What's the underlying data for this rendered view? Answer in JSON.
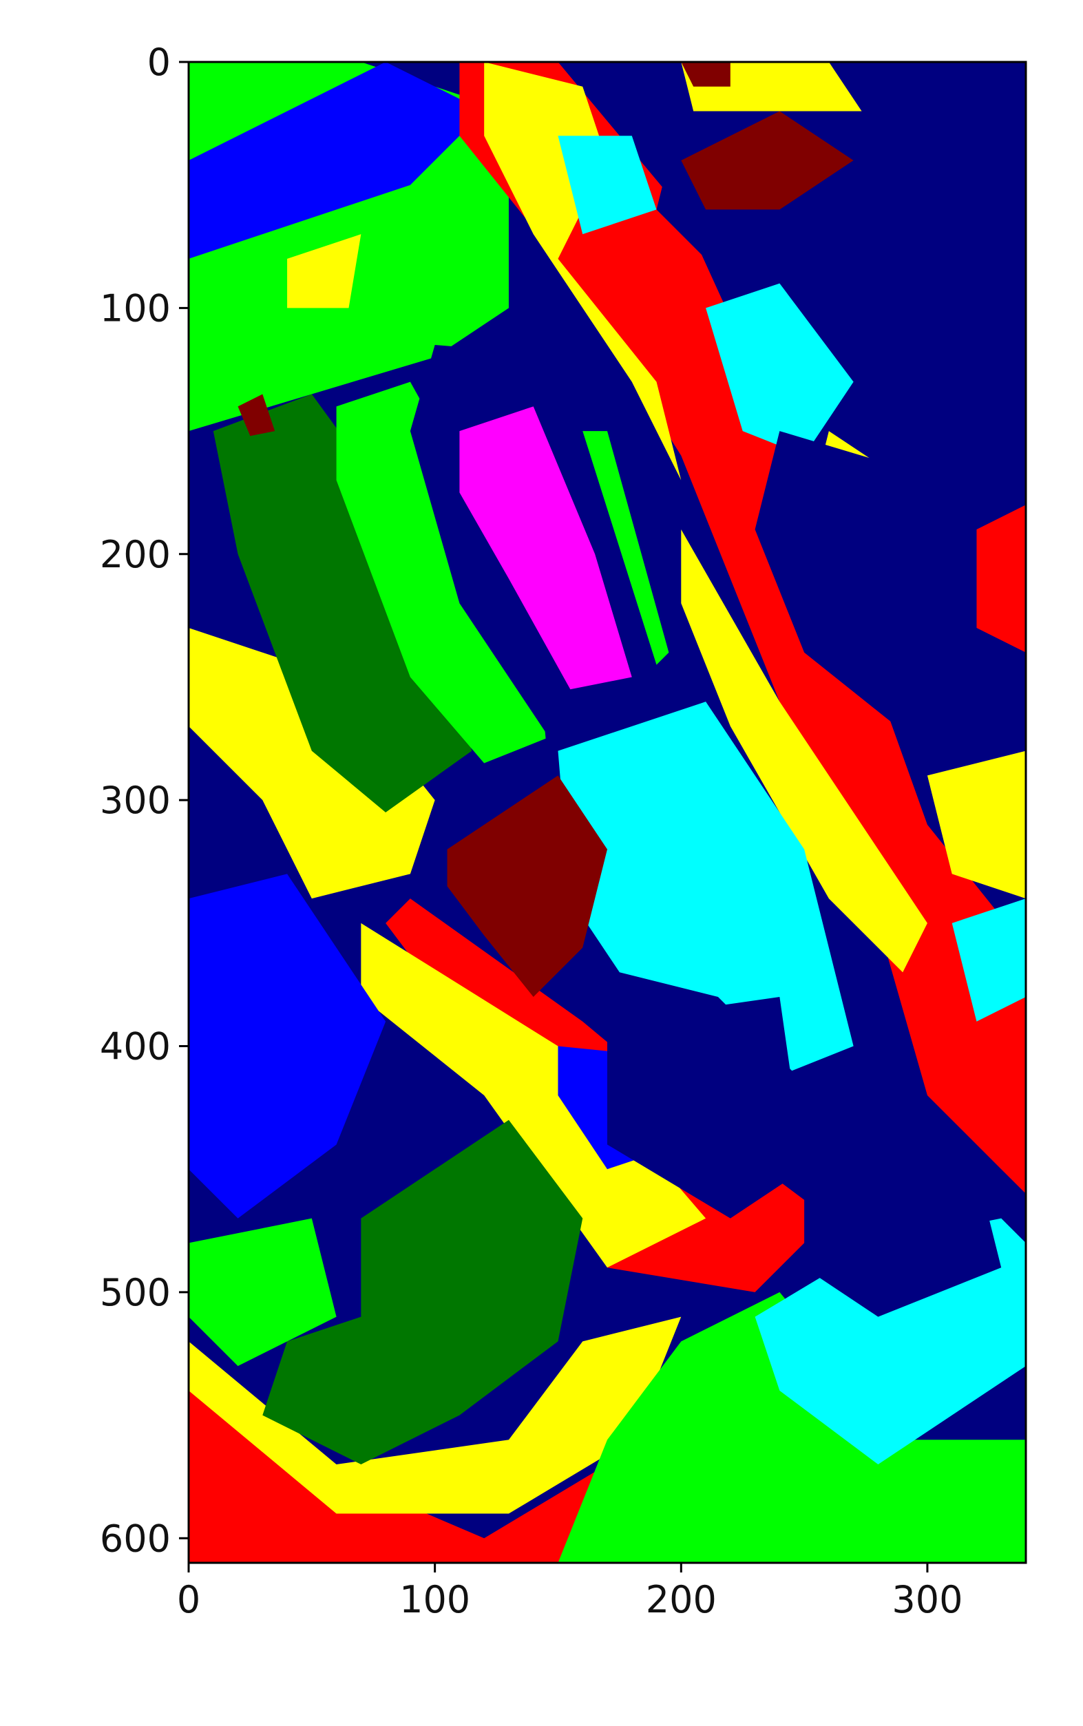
{
  "chart_data": {
    "type": "heatmap",
    "title": "",
    "xlabel": "",
    "ylabel": "",
    "xlim": [
      0,
      340
    ],
    "ylim": [
      610,
      0
    ],
    "x_ticks": [
      0,
      100,
      200,
      300
    ],
    "y_ticks": [
      0,
      100,
      200,
      300,
      400,
      500,
      600
    ],
    "x_tick_labels": [
      "0",
      "100",
      "200",
      "300"
    ],
    "y_tick_labels": [
      "0",
      "100",
      "200",
      "300",
      "400",
      "500",
      "600"
    ],
    "grid": false,
    "legend": "none",
    "palette": {
      "navy": "#000080",
      "blue": "#0000ff",
      "green": "#00ff00",
      "dark_green": "#007700",
      "yellow": "#ffff00",
      "red": "#ff0000",
      "cyan": "#00ffff",
      "magenta": "#ff00ff",
      "maroon": "#800000"
    },
    "regions": [
      {
        "class": "green",
        "points": [
          [
            0,
            0
          ],
          [
            70,
            0
          ],
          [
            130,
            20
          ],
          [
            130,
            100
          ],
          [
            100,
            120
          ],
          [
            0,
            150
          ]
        ]
      },
      {
        "class": "blue",
        "points": [
          [
            0,
            40
          ],
          [
            80,
            0
          ],
          [
            120,
            20
          ],
          [
            90,
            50
          ],
          [
            0,
            80
          ]
        ]
      },
      {
        "class": "yellow",
        "points": [
          [
            40,
            80
          ],
          [
            70,
            70
          ],
          [
            65,
            100
          ],
          [
            40,
            100
          ]
        ]
      },
      {
        "class": "red",
        "points": [
          [
            110,
            0
          ],
          [
            150,
            0
          ],
          [
            200,
            60
          ],
          [
            250,
            170
          ],
          [
            300,
            310
          ],
          [
            340,
            360
          ],
          [
            340,
            460
          ],
          [
            330,
            450
          ],
          [
            300,
            420
          ],
          [
            280,
            350
          ],
          [
            240,
            260
          ],
          [
            200,
            160
          ],
          [
            150,
            80
          ],
          [
            110,
            30
          ]
        ]
      },
      {
        "class": "red",
        "points": [
          [
            90,
            340
          ],
          [
            160,
            390
          ],
          [
            220,
            440
          ],
          [
            260,
            470
          ],
          [
            230,
            500
          ],
          [
            170,
            490
          ],
          [
            110,
            390
          ],
          [
            80,
            350
          ]
        ]
      },
      {
        "class": "red",
        "points": [
          [
            0,
            520
          ],
          [
            50,
            570
          ],
          [
            120,
            600
          ],
          [
            170,
            570
          ],
          [
            170,
            610
          ],
          [
            0,
            610
          ]
        ]
      },
      {
        "class": "yellow",
        "points": [
          [
            120,
            0
          ],
          [
            160,
            10
          ],
          [
            170,
            40
          ],
          [
            150,
            80
          ],
          [
            190,
            130
          ],
          [
            200,
            170
          ],
          [
            180,
            130
          ],
          [
            140,
            70
          ],
          [
            120,
            30
          ]
        ]
      },
      {
        "class": "yellow",
        "points": [
          [
            200,
            190
          ],
          [
            240,
            260
          ],
          [
            280,
            320
          ],
          [
            300,
            350
          ],
          [
            290,
            370
          ],
          [
            260,
            340
          ],
          [
            220,
            270
          ],
          [
            200,
            220
          ]
        ]
      },
      {
        "class": "yellow",
        "points": [
          [
            0,
            230
          ],
          [
            60,
            250
          ],
          [
            100,
            300
          ],
          [
            90,
            330
          ],
          [
            50,
            340
          ],
          [
            30,
            300
          ],
          [
            0,
            270
          ]
        ]
      },
      {
        "class": "yellow",
        "points": [
          [
            70,
            350
          ],
          [
            150,
            400
          ],
          [
            210,
            470
          ],
          [
            170,
            490
          ],
          [
            120,
            420
          ],
          [
            70,
            380
          ]
        ]
      },
      {
        "class": "yellow",
        "points": [
          [
            0,
            540
          ],
          [
            60,
            590
          ],
          [
            130,
            590
          ],
          [
            180,
            560
          ],
          [
            200,
            510
          ],
          [
            160,
            520
          ],
          [
            130,
            560
          ],
          [
            60,
            570
          ],
          [
            0,
            520
          ]
        ]
      },
      {
        "class": "yellow",
        "points": [
          [
            260,
            150
          ],
          [
            290,
            170
          ],
          [
            310,
            210
          ],
          [
            300,
            250
          ],
          [
            270,
            230
          ],
          [
            250,
            190
          ]
        ]
      },
      {
        "class": "yellow",
        "points": [
          [
            300,
            290
          ],
          [
            340,
            280
          ],
          [
            340,
            340
          ],
          [
            310,
            330
          ]
        ]
      },
      {
        "class": "yellow",
        "points": [
          [
            200,
            0
          ],
          [
            260,
            0
          ],
          [
            280,
            30
          ],
          [
            240,
            60
          ],
          [
            210,
            40
          ]
        ]
      },
      {
        "class": "dark_green",
        "points": [
          [
            10,
            150
          ],
          [
            50,
            135
          ],
          [
            90,
            190
          ],
          [
            115,
            280
          ],
          [
            80,
            305
          ],
          [
            50,
            280
          ],
          [
            20,
            200
          ]
        ]
      },
      {
        "class": "green",
        "points": [
          [
            60,
            140
          ],
          [
            90,
            130
          ],
          [
            140,
            220
          ],
          [
            145,
            275
          ],
          [
            120,
            285
          ],
          [
            90,
            250
          ],
          [
            60,
            170
          ]
        ]
      },
      {
        "class": "navy",
        "points": [
          [
            100,
            115
          ],
          [
            160,
            120
          ],
          [
            200,
            240
          ],
          [
            180,
            270
          ],
          [
            150,
            280
          ],
          [
            110,
            220
          ],
          [
            90,
            150
          ]
        ]
      },
      {
        "class": "magenta",
        "points": [
          [
            110,
            150
          ],
          [
            140,
            140
          ],
          [
            165,
            200
          ],
          [
            180,
            250
          ],
          [
            155,
            255
          ],
          [
            130,
            210
          ],
          [
            110,
            175
          ]
        ]
      },
      {
        "class": "green",
        "points": [
          [
            160,
            150
          ],
          [
            170,
            150
          ],
          [
            195,
            240
          ],
          [
            190,
            245
          ]
        ]
      },
      {
        "class": "cyan",
        "points": [
          [
            150,
            280
          ],
          [
            210,
            260
          ],
          [
            250,
            320
          ],
          [
            270,
            400
          ],
          [
            245,
            410
          ],
          [
            215,
            380
          ],
          [
            175,
            370
          ],
          [
            155,
            340
          ]
        ]
      },
      {
        "class": "maroon",
        "points": [
          [
            105,
            320
          ],
          [
            150,
            290
          ],
          [
            170,
            320
          ],
          [
            160,
            360
          ],
          [
            140,
            380
          ],
          [
            120,
            355
          ],
          [
            105,
            335
          ]
        ]
      },
      {
        "class": "blue",
        "points": [
          [
            0,
            340
          ],
          [
            40,
            330
          ],
          [
            80,
            390
          ],
          [
            60,
            440
          ],
          [
            20,
            470
          ],
          [
            0,
            450
          ]
        ]
      },
      {
        "class": "blue",
        "points": [
          [
            150,
            400
          ],
          [
            200,
            405
          ],
          [
            200,
            440
          ],
          [
            170,
            450
          ],
          [
            150,
            420
          ]
        ]
      },
      {
        "class": "navy",
        "points": [
          [
            170,
            390
          ],
          [
            240,
            380
          ],
          [
            250,
            450
          ],
          [
            220,
            470
          ],
          [
            170,
            440
          ]
        ]
      },
      {
        "class": "dark_green",
        "points": [
          [
            70,
            470
          ],
          [
            130,
            430
          ],
          [
            160,
            470
          ],
          [
            150,
            520
          ],
          [
            110,
            550
          ],
          [
            70,
            570
          ],
          [
            30,
            550
          ],
          [
            40,
            520
          ],
          [
            70,
            510
          ]
        ]
      },
      {
        "class": "green",
        "points": [
          [
            0,
            480
          ],
          [
            50,
            470
          ],
          [
            60,
            510
          ],
          [
            20,
            530
          ],
          [
            0,
            510
          ]
        ]
      },
      {
        "class": "green",
        "points": [
          [
            150,
            610
          ],
          [
            170,
            560
          ],
          [
            200,
            520
          ],
          [
            240,
            500
          ],
          [
            290,
            560
          ],
          [
            340,
            560
          ],
          [
            340,
            610
          ]
        ]
      },
      {
        "class": "cyan",
        "points": [
          [
            230,
            510
          ],
          [
            280,
            480
          ],
          [
            330,
            470
          ],
          [
            340,
            480
          ],
          [
            340,
            530
          ],
          [
            280,
            570
          ],
          [
            240,
            540
          ]
        ]
      },
      {
        "class": "maroon",
        "points": [
          [
            260,
            480
          ],
          [
            300,
            460
          ],
          [
            310,
            480
          ],
          [
            270,
            490
          ]
        ]
      },
      {
        "class": "navy",
        "points": [
          [
            250,
            460
          ],
          [
            320,
            450
          ],
          [
            330,
            490
          ],
          [
            280,
            510
          ],
          [
            250,
            490
          ]
        ]
      },
      {
        "class": "navy",
        "points": [
          [
            200,
            20
          ],
          [
            280,
            20
          ],
          [
            300,
            60
          ],
          [
            340,
            80
          ],
          [
            340,
            160
          ],
          [
            300,
            150
          ],
          [
            260,
            110
          ],
          [
            220,
            90
          ],
          [
            190,
            60
          ]
        ]
      },
      {
        "class": "maroon",
        "points": [
          [
            200,
            40
          ],
          [
            240,
            20
          ],
          [
            270,
            40
          ],
          [
            240,
            60
          ],
          [
            210,
            60
          ]
        ]
      },
      {
        "class": "maroon",
        "points": [
          [
            200,
            0
          ],
          [
            220,
            0
          ],
          [
            220,
            10
          ],
          [
            205,
            10
          ]
        ]
      },
      {
        "class": "cyan",
        "points": [
          [
            150,
            30
          ],
          [
            180,
            30
          ],
          [
            190,
            60
          ],
          [
            160,
            70
          ]
        ]
      },
      {
        "class": "cyan",
        "points": [
          [
            210,
            100
          ],
          [
            240,
            90
          ],
          [
            270,
            130
          ],
          [
            250,
            160
          ],
          [
            225,
            150
          ]
        ]
      },
      {
        "class": "cyan",
        "points": [
          [
            310,
            350
          ],
          [
            340,
            340
          ],
          [
            340,
            380
          ],
          [
            320,
            390
          ]
        ]
      },
      {
        "class": "navy",
        "points": [
          [
            240,
            150
          ],
          [
            340,
            180
          ],
          [
            340,
            250
          ],
          [
            300,
            280
          ],
          [
            250,
            240
          ],
          [
            230,
            190
          ]
        ]
      },
      {
        "class": "red",
        "points": [
          [
            320,
            190
          ],
          [
            340,
            180
          ],
          [
            340,
            240
          ],
          [
            320,
            230
          ]
        ]
      },
      {
        "class": "maroon",
        "points": [
          [
            20,
            140
          ],
          [
            30,
            135
          ],
          [
            35,
            150
          ],
          [
            25,
            152
          ]
        ]
      }
    ]
  }
}
